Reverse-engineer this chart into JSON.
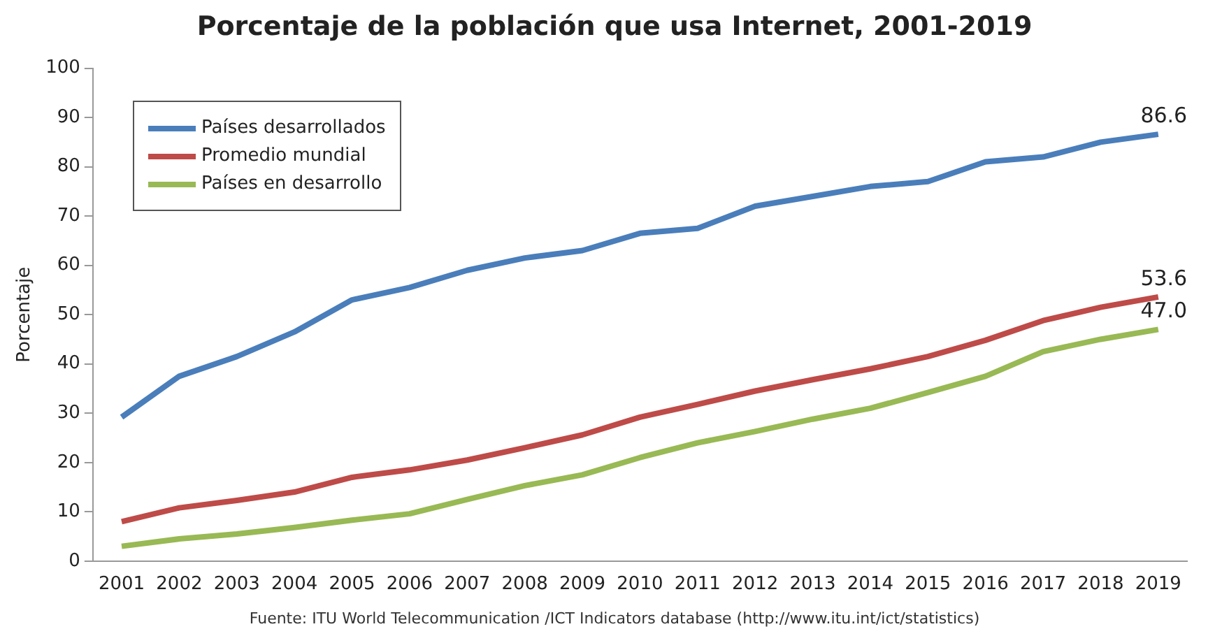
{
  "chart_data": {
    "type": "line",
    "title": "Porcentaje de la población que usa Internet, 2001-2019",
    "ylabel": "Porcentaje",
    "categories": [
      "2001",
      "2002",
      "2003",
      "2004",
      "2005",
      "2006",
      "2007",
      "2008",
      "2009",
      "2010",
      "2011",
      "2012",
      "2013",
      "2014",
      "2015",
      "2016",
      "2017",
      "2018",
      "2019"
    ],
    "series": [
      {
        "name": "Países desarrollados",
        "color": "#4a7ebb",
        "values": [
          29.2,
          37.5,
          41.5,
          46.5,
          53,
          55.5,
          59,
          61.5,
          63,
          66.5,
          67.5,
          72,
          74,
          76,
          77,
          81,
          82,
          85,
          86.6
        ],
        "value_labels": [
          null,
          null,
          null,
          null,
          null,
          null,
          null,
          null,
          null,
          null,
          null,
          null,
          null,
          null,
          null,
          null,
          null,
          null,
          "86.6"
        ]
      },
      {
        "name": "Promedio mundial",
        "color": "#be4b48",
        "values": [
          8,
          10.8,
          12.3,
          14,
          17,
          18.5,
          20.5,
          23,
          25.6,
          29.2,
          31.8,
          34.5,
          36.8,
          39,
          41.5,
          44.8,
          48.8,
          51.5,
          53.6
        ],
        "value_labels": [
          null,
          null,
          null,
          null,
          null,
          null,
          null,
          null,
          null,
          null,
          null,
          null,
          null,
          null,
          null,
          null,
          null,
          null,
          "53.6"
        ]
      },
      {
        "name": "Países en desarrollo",
        "color": "#98b954",
        "values": [
          3,
          4.5,
          5.5,
          6.8,
          8.3,
          9.6,
          12.5,
          15.3,
          17.5,
          21,
          24,
          26.3,
          28.8,
          31,
          34.2,
          37.5,
          42.5,
          45,
          47.0
        ],
        "value_labels": [
          null,
          null,
          null,
          null,
          null,
          null,
          null,
          null,
          null,
          null,
          null,
          null,
          null,
          null,
          null,
          null,
          null,
          null,
          "47.0"
        ]
      }
    ],
    "ylim": [
      0,
      100
    ],
    "yticks": [
      0,
      10,
      20,
      30,
      40,
      50,
      60,
      70,
      80,
      90,
      100
    ],
    "grid": false,
    "legend": "top left",
    "marker": "none",
    "line_style": "solid",
    "annotations": [
      "Fuente:  ITU World Telecommunication /ICT Indicators database (http://www.itu.int/ict/statistics)"
    ]
  }
}
